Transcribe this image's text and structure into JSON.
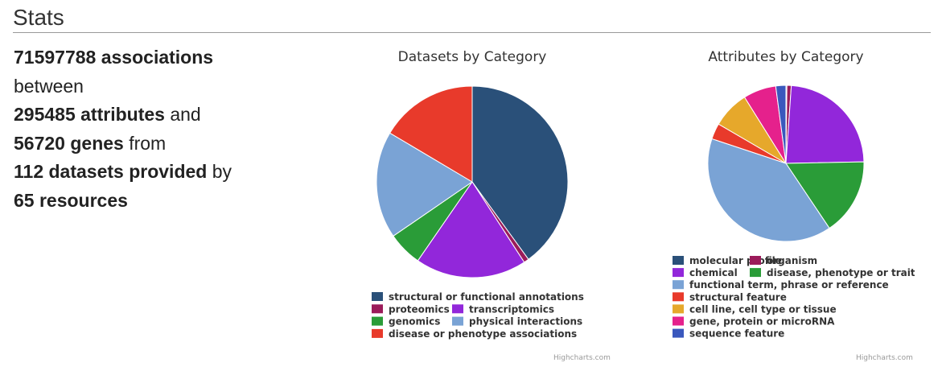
{
  "page": {
    "title": "Stats"
  },
  "stats": {
    "associations": "71597788 associations",
    "between": "between",
    "attributes": "295485 attributes",
    "and": " and",
    "genes": "56720 genes",
    "from": " from",
    "datasets": "112 datasets provided",
    "by": " by",
    "resources": "65 resources"
  },
  "chart_data": [
    {
      "type": "pie",
      "title": "Datasets by Category",
      "credit": "Highcharts.com",
      "legend_position": "bottom-left",
      "series": [
        {
          "name": "structural or functional annotations",
          "value": 42.0,
          "color": "#2a5079"
        },
        {
          "name": "proteomics",
          "value": 0.9,
          "color": "#9b1b5a"
        },
        {
          "name": "transcriptomics",
          "value": 19.7,
          "color": "#9227da"
        },
        {
          "name": "genomics",
          "value": 6.1,
          "color": "#2a9c38"
        },
        {
          "name": "physical interactions",
          "value": 19.0,
          "color": "#7aa3d5"
        },
        {
          "name": "disease or phenotype associations",
          "value": 17.3,
          "color": "#e83a2b"
        }
      ],
      "legend_rows": [
        [
          0
        ],
        [
          1,
          2
        ],
        [
          3,
          4
        ],
        [
          5
        ]
      ]
    },
    {
      "type": "pie",
      "title": "Attributes by Category",
      "credit": "Highcharts.com",
      "legend_position": "bottom-left",
      "series": [
        {
          "name": "molecular profile",
          "value": 0.2,
          "color": "#2a5079"
        },
        {
          "name": "organism",
          "value": 0.9,
          "color": "#9b1b5a"
        },
        {
          "name": "chemical",
          "value": 23.6,
          "color": "#9227da"
        },
        {
          "name": "disease, phenotype or trait",
          "value": 15.9,
          "color": "#2a9c38"
        },
        {
          "name": "functional term, phrase or reference",
          "value": 39.5,
          "color": "#7aa3d5"
        },
        {
          "name": "structural feature",
          "value": 3.3,
          "color": "#e83a2b"
        },
        {
          "name": "cell line, cell type or tissue",
          "value": 7.7,
          "color": "#e6a82b"
        },
        {
          "name": "gene, protein or microRNA",
          "value": 6.8,
          "color": "#e5218c"
        },
        {
          "name": "sequence feature",
          "value": 2.1,
          "color": "#3a58bd"
        }
      ],
      "legend_rows": [
        [
          0,
          1
        ],
        [
          2,
          3
        ],
        [
          4
        ],
        [
          5
        ],
        [
          6
        ],
        [
          7
        ],
        [
          8
        ]
      ]
    }
  ]
}
